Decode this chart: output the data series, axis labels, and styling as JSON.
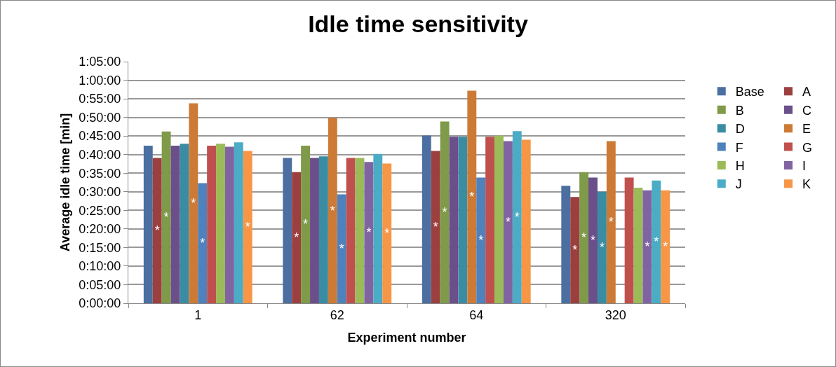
{
  "chart_data": {
    "type": "bar",
    "title": "Idle time sensitivity",
    "xlabel": "Experiment number",
    "ylabel": "Average idle time [min]",
    "categories": [
      "1",
      "62",
      "64",
      "320"
    ],
    "ylim": [
      0,
      65
    ],
    "yticks": [
      {
        "value": 0,
        "label": "0:00:00"
      },
      {
        "value": 5,
        "label": "0:05:00"
      },
      {
        "value": 10,
        "label": "0:10:00"
      },
      {
        "value": 15,
        "label": "0:15:00"
      },
      {
        "value": 20,
        "label": "0:20:00"
      },
      {
        "value": 25,
        "label": "0:25:00"
      },
      {
        "value": 30,
        "label": "0:30:00"
      },
      {
        "value": 35,
        "label": "0:35:00"
      },
      {
        "value": 40,
        "label": "0:40:00"
      },
      {
        "value": 45,
        "label": "0:45:00"
      },
      {
        "value": 50,
        "label": "0:50:00"
      },
      {
        "value": 55,
        "label": "0:55:00"
      },
      {
        "value": 60,
        "label": "1:00:00"
      },
      {
        "value": 65,
        "label": "1:05:00"
      }
    ],
    "grid": "y",
    "legend": "right",
    "series": [
      {
        "name": "Base",
        "color": "#4a6fa0",
        "values": [
          42.4,
          39.1,
          45.1,
          31.6
        ]
      },
      {
        "name": "A",
        "color": "#9c3f3f",
        "values": [
          39.1,
          35.3,
          41.0,
          28.6
        ],
        "value_labels": [
          "*",
          "*",
          "*",
          "*"
        ]
      },
      {
        "name": "B",
        "color": "#7f9a48",
        "values": [
          46.2,
          42.4,
          48.9,
          35.3
        ],
        "value_labels": [
          "*",
          "*",
          "*",
          "*"
        ]
      },
      {
        "name": "C",
        "color": "#6a4f8a",
        "values": [
          42.4,
          39.1,
          44.8,
          33.8
        ],
        "value_labels": [
          null,
          null,
          null,
          "*"
        ]
      },
      {
        "name": "D",
        "color": "#3a8ca3",
        "values": [
          42.9,
          39.5,
          44.8,
          30.0
        ],
        "value_labels": [
          null,
          null,
          null,
          "*"
        ]
      },
      {
        "name": "E",
        "color": "#cc7a36",
        "values": [
          53.8,
          49.9,
          57.2,
          43.6
        ],
        "value_labels": [
          "*",
          "*",
          "*",
          "*"
        ]
      },
      {
        "name": "F",
        "color": "#4f81bd",
        "values": [
          32.3,
          29.3,
          33.8,
          null
        ],
        "value_labels": [
          "*",
          "*",
          "*",
          null
        ]
      },
      {
        "name": "G",
        "color": "#c0504d",
        "values": [
          42.4,
          39.1,
          44.8,
          33.8
        ]
      },
      {
        "name": "H",
        "color": "#9bbb59",
        "values": [
          42.9,
          39.1,
          45.1,
          31.1
        ]
      },
      {
        "name": "I",
        "color": "#8064a2",
        "values": [
          42.1,
          38.0,
          43.6,
          30.4
        ],
        "value_labels": [
          null,
          "*",
          "*",
          "*"
        ]
      },
      {
        "name": "J",
        "color": "#4bacc6",
        "values": [
          43.3,
          40.2,
          46.3,
          33.0
        ],
        "value_labels": [
          null,
          null,
          "*",
          "*"
        ]
      },
      {
        "name": "K",
        "color": "#f79646",
        "values": [
          41.0,
          37.6,
          44.0,
          30.4
        ],
        "value_labels": [
          "*",
          "*",
          null,
          "*"
        ]
      }
    ]
  }
}
